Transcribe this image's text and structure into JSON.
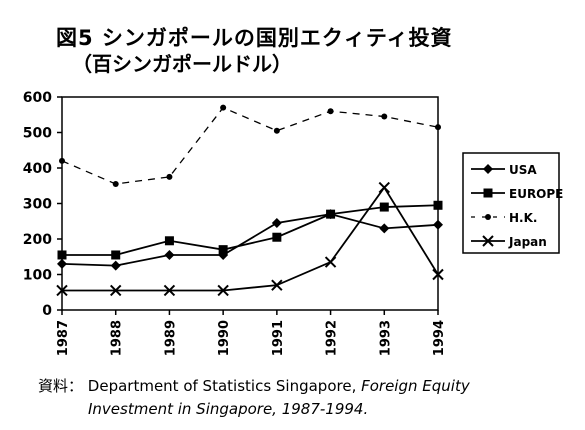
{
  "chart_data": {
    "type": "line",
    "title": "図5 シンガポールの国別エクィティ投資",
    "subtitle": "（百シンガポールドル）",
    "x": [
      "1987",
      "1988",
      "1989",
      "1990",
      "1991",
      "1992",
      "1993",
      "1994"
    ],
    "ylim": [
      0,
      600
    ],
    "yticks": [
      "0",
      "100",
      "200",
      "300",
      "400",
      "500",
      "600"
    ],
    "grid": false,
    "legend_position": "right",
    "series": [
      {
        "name": "USA",
        "marker": "diamond",
        "style": "solid",
        "values": [
          130,
          125,
          155,
          155,
          245,
          270,
          230,
          240
        ]
      },
      {
        "name": "EUROPE",
        "marker": "square",
        "style": "solid",
        "values": [
          155,
          155,
          195,
          170,
          205,
          270,
          290,
          295
        ]
      },
      {
        "name": "H.K.",
        "marker": "dot",
        "style": "dashed",
        "values": [
          420,
          355,
          375,
          570,
          505,
          560,
          545,
          515
        ]
      },
      {
        "name": "Japan",
        "marker": "x",
        "style": "solid",
        "values": [
          55,
          55,
          55,
          55,
          70,
          135,
          345,
          100
        ]
      }
    ]
  },
  "source": {
    "prefix": "資料：",
    "org": "Department of Statistics Singapore, ",
    "pub": "Foreign Equity",
    "line2": "Investment in Singapore, 1987-1994."
  }
}
